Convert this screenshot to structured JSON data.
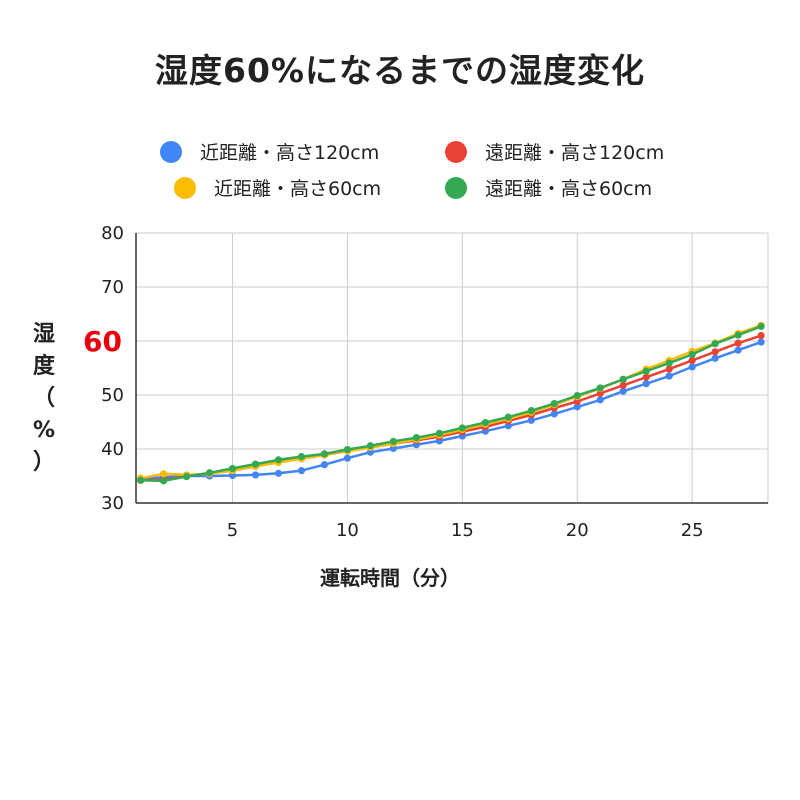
{
  "chart_data": {
    "type": "line",
    "title": "湿度60%になるまでの湿度変化",
    "xlabel": "運転時間（分）",
    "ylabel": "湿度（%）",
    "xlim": [
      0.8,
      28.3
    ],
    "ylim": [
      30,
      80
    ],
    "x_ticks": [
      5,
      10,
      15,
      20,
      25
    ],
    "y_ticks": [
      30,
      40,
      50,
      70,
      80
    ],
    "highlight_tick": {
      "value": 60,
      "label": "60",
      "color": "#e8000c"
    },
    "grid": true,
    "legend_position": "top",
    "x": [
      1,
      2,
      3,
      4,
      5,
      6,
      7,
      8,
      9,
      10,
      11,
      12,
      13,
      14,
      15,
      16,
      17,
      18,
      19,
      20,
      21,
      22,
      23,
      24,
      25,
      26,
      27,
      28
    ],
    "series": [
      {
        "name": "近距離・高さ120cm",
        "color": "#4285f4",
        "values": [
          34.4,
          34.8,
          35.0,
          35.0,
          35.1,
          35.2,
          35.5,
          36.0,
          37.1,
          38.3,
          39.4,
          40.1,
          40.8,
          41.5,
          42.4,
          43.3,
          44.3,
          45.3,
          46.5,
          47.8,
          49.1,
          50.7,
          52.1,
          53.5,
          55.2,
          56.8,
          58.3,
          59.8
        ]
      },
      {
        "name": "遠距離・高さ120cm",
        "color": "#ea4335",
        "values": [
          34.2,
          34.3,
          35.0,
          35.5,
          36.0,
          36.8,
          37.6,
          38.2,
          38.9,
          39.6,
          40.3,
          41.0,
          41.6,
          42.3,
          43.2,
          44.1,
          45.2,
          46.3,
          47.6,
          48.8,
          50.3,
          51.8,
          53.3,
          54.8,
          56.4,
          58.0,
          59.6,
          61.0
        ]
      },
      {
        "name": "近距離・高さ60cm",
        "color": "#fbbc04",
        "values": [
          34.6,
          35.4,
          35.2,
          35.4,
          36.0,
          36.8,
          37.5,
          38.2,
          38.9,
          39.6,
          40.3,
          41.0,
          41.8,
          42.6,
          43.6,
          44.6,
          45.6,
          46.8,
          48.2,
          49.7,
          51.2,
          52.9,
          54.8,
          56.4,
          58.1,
          59.6,
          61.4,
          62.9
        ]
      },
      {
        "name": "遠距離・高さ60cm",
        "color": "#34a853",
        "values": [
          34.2,
          34.1,
          34.9,
          35.6,
          36.4,
          37.2,
          38.0,
          38.6,
          39.1,
          39.9,
          40.6,
          41.4,
          42.1,
          42.9,
          43.9,
          44.9,
          45.9,
          47.1,
          48.4,
          49.9,
          51.3,
          52.9,
          54.4,
          55.9,
          57.5,
          59.5,
          61.1,
          62.7
        ]
      }
    ],
    "legend_order": [
      0,
      1,
      2,
      3
    ]
  }
}
